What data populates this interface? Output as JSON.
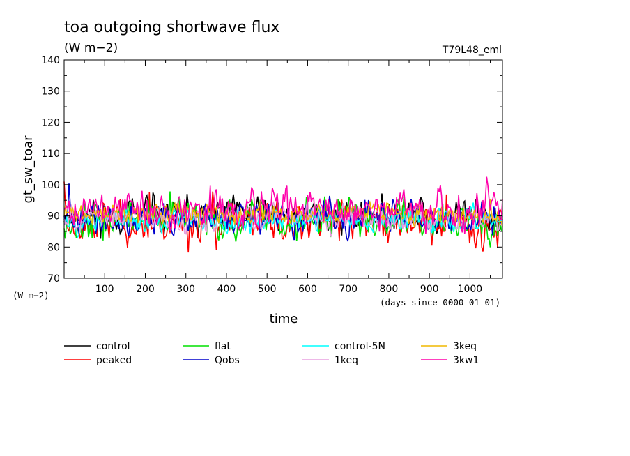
{
  "chart_data": {
    "type": "line",
    "title": "toa outgoing shortwave flux",
    "units": "(W m−2)",
    "experiment": "T79L48_eml",
    "ylabel": "gt_sw_toar",
    "yunits_label": "(W m−2)",
    "xlabel": "time",
    "xunits_label": "(days since 0000-01-01)",
    "xlim": [
      0,
      1080
    ],
    "ylim": [
      70,
      140
    ],
    "x_ticks": [
      100,
      200,
      300,
      400,
      500,
      600,
      700,
      800,
      900,
      1000
    ],
    "y_ticks": [
      70,
      80,
      90,
      100,
      110,
      120,
      130,
      140
    ],
    "x_step_days": 3,
    "series": [
      {
        "name": "control",
        "color": "#000000",
        "mean": 90.0,
        "amp": 2.6,
        "seed": 11,
        "values_sample": [
          88,
          91,
          89,
          92,
          90,
          87,
          91,
          93,
          89,
          90
        ]
      },
      {
        "name": "peaked",
        "color": "#ff0000",
        "mean": 88.0,
        "amp": 3.2,
        "seed": 23,
        "values_sample": [
          101,
          86,
          84,
          88,
          86,
          84,
          87,
          90,
          85,
          83
        ]
      },
      {
        "name": "flat",
        "color": "#00e000",
        "mean": 89.0,
        "amp": 3.0,
        "seed": 37,
        "values_sample": [
          86,
          88,
          92,
          87,
          85,
          90,
          99,
          88,
          86,
          91
        ]
      },
      {
        "name": "Qobs",
        "color": "#0000cc",
        "mean": 89.2,
        "amp": 2.4,
        "seed": 41,
        "values_sample": [
          90,
          88,
          87,
          91,
          89,
          86,
          90,
          92,
          88,
          87
        ]
      },
      {
        "name": "control-5N",
        "color": "#00ffff",
        "mean": 88.6,
        "amp": 1.8,
        "seed": 53,
        "values_sample": [
          89,
          88,
          87,
          99,
          88,
          89,
          87,
          88,
          90,
          87
        ]
      },
      {
        "name": "1keq",
        "color": "#e8a0e0",
        "mean": 89.4,
        "amp": 1.8,
        "seed": 67,
        "values_sample": [
          89,
          90,
          88,
          89,
          91,
          88,
          89,
          90,
          88,
          89
        ]
      },
      {
        "name": "3keq",
        "color": "#f0b800",
        "mean": 90.6,
        "amp": 1.6,
        "seed": 71,
        "values_sample": [
          90,
          91,
          90,
          92,
          89,
          91,
          90,
          91,
          90,
          92
        ]
      },
      {
        "name": "3kw1",
        "color": "#ff00aa",
        "mean": 92.0,
        "amp": 3.0,
        "seed": 89,
        "values_sample": [
          92,
          95,
          91,
          97,
          100,
          93,
          94,
          102,
          92,
          95
        ]
      }
    ],
    "grid": false,
    "legend_placement": "bottom"
  }
}
